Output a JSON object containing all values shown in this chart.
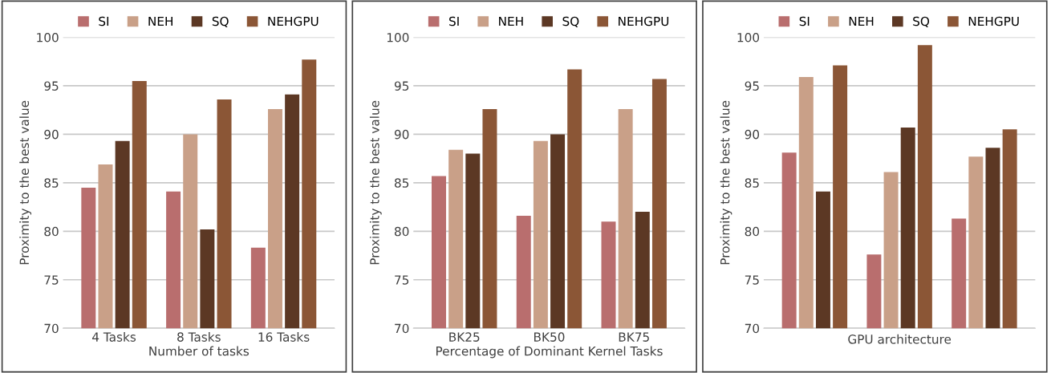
{
  "chart_data": [
    {
      "type": "bar",
      "xlabel": "Number of tasks",
      "ylabel": "Proximity to the best value",
      "categories": [
        "4 Tasks",
        "8 Tasks",
        "16 Tasks"
      ],
      "ylim": [
        70,
        100
      ],
      "yticks": [
        70,
        75,
        80,
        85,
        90,
        95,
        100
      ],
      "grid": "y",
      "legend": "top",
      "series": [
        {
          "name": "SI",
          "color": "#b96e6e",
          "values": [
            84.5,
            84.1,
            78.3
          ]
        },
        {
          "name": "NEH",
          "color": "#c9a088",
          "values": [
            86.9,
            90.0,
            92.6
          ]
        },
        {
          "name": "SQ",
          "color": "#5c3824",
          "values": [
            89.3,
            80.2,
            94.1
          ]
        },
        {
          "name": "NEHGPU",
          "color": "#8b5636",
          "values": [
            95.5,
            93.6,
            97.7
          ]
        }
      ]
    },
    {
      "type": "bar",
      "xlabel": "Percentage of Dominant Kernel Tasks",
      "ylabel": "Proximity to the best value",
      "categories": [
        "BK25",
        "BK50",
        "BK75"
      ],
      "ylim": [
        70,
        100
      ],
      "yticks": [
        70,
        75,
        80,
        85,
        90,
        95,
        100
      ],
      "grid": "y",
      "legend": "top",
      "series": [
        {
          "name": "SI",
          "color": "#b96e6e",
          "values": [
            85.7,
            81.6,
            81.0
          ]
        },
        {
          "name": "NEH",
          "color": "#c9a088",
          "values": [
            88.4,
            89.3,
            92.6
          ]
        },
        {
          "name": "SQ",
          "color": "#5c3824",
          "values": [
            88.0,
            90.0,
            82.0
          ]
        },
        {
          "name": "NEHGPU",
          "color": "#8b5636",
          "values": [
            92.6,
            96.7,
            95.7
          ]
        }
      ]
    },
    {
      "type": "bar",
      "xlabel": "GPU architecture",
      "ylabel": "Proximity to the best value",
      "categories": [
        null,
        null,
        null
      ],
      "ylim": [
        70,
        100
      ],
      "yticks": [
        70,
        75,
        80,
        85,
        90,
        95,
        100
      ],
      "grid": "y",
      "legend": "top",
      "series": [
        {
          "name": "SI",
          "color": "#b96e6e",
          "values": [
            88.1,
            77.6,
            81.3
          ]
        },
        {
          "name": "NEH",
          "color": "#c9a088",
          "values": [
            95.9,
            86.1,
            87.7
          ]
        },
        {
          "name": "SQ",
          "color": "#5c3824",
          "values": [
            84.1,
            90.7,
            88.6
          ]
        },
        {
          "name": "NEHGPU",
          "color": "#8b5636",
          "values": [
            97.1,
            99.2,
            90.5
          ]
        }
      ]
    }
  ]
}
